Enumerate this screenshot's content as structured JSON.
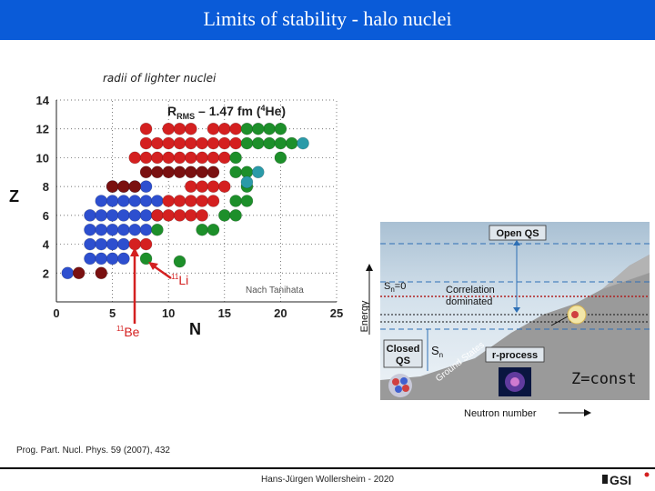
{
  "header": {
    "title": "Limits of stability - halo nuclei"
  },
  "subtitle": "radii of lighter nuclei",
  "chart_data": {
    "type": "scatter",
    "title": "",
    "annotation": {
      "text": "R",
      "sub": "RMS",
      "rest": " – 1.47 fm (",
      "sup": "4",
      "end": "He)"
    },
    "xlabel": "N",
    "ylabel": "Z",
    "xlim": [
      0,
      25
    ],
    "ylim": [
      0,
      14
    ],
    "xticks": [
      "0",
      "5",
      "10",
      "15",
      "20",
      "25"
    ],
    "yticks": [
      "2",
      "4",
      "6",
      "8",
      "10",
      "12",
      "14"
    ],
    "source_note": "Nach Tanihata",
    "labels": {
      "li": {
        "sup": "11",
        "text": "Li",
        "x": 11.5,
        "y": 3
      },
      "be": {
        "sup": "11",
        "text": "Be",
        "x": 7,
        "y": 4
      }
    },
    "series": [
      {
        "color": "#2d4fcf",
        "points": [
          [
            3,
            6
          ],
          [
            4,
            6
          ],
          [
            5,
            6
          ],
          [
            6,
            6
          ],
          [
            7,
            6
          ],
          [
            8,
            6
          ],
          [
            9,
            6
          ],
          [
            3,
            5
          ],
          [
            4,
            5
          ],
          [
            5,
            5
          ],
          [
            6,
            5
          ],
          [
            7,
            5
          ],
          [
            8,
            5
          ],
          [
            3,
            4
          ],
          [
            4,
            4
          ],
          [
            5,
            4
          ],
          [
            6,
            4
          ],
          [
            3,
            3
          ],
          [
            4,
            3
          ],
          [
            5,
            3
          ],
          [
            6,
            3
          ],
          [
            4,
            7
          ],
          [
            5,
            7
          ],
          [
            6,
            7
          ],
          [
            7,
            7
          ],
          [
            8,
            7
          ],
          [
            9,
            7
          ],
          [
            5,
            8
          ],
          [
            6,
            8
          ],
          [
            7,
            8
          ],
          [
            8,
            8
          ],
          [
            1,
            2
          ]
        ]
      },
      {
        "color": "#7a1010",
        "points": [
          [
            2,
            2
          ],
          [
            4,
            2
          ],
          [
            5,
            8
          ],
          [
            6,
            8
          ],
          [
            7,
            8
          ],
          [
            8,
            9
          ],
          [
            9,
            9
          ],
          [
            10,
            9
          ],
          [
            11,
            9
          ],
          [
            12,
            9
          ],
          [
            13,
            9
          ],
          [
            14,
            9
          ]
        ]
      },
      {
        "color": "#d42020",
        "points": [
          [
            7,
            4
          ],
          [
            8,
            4
          ],
          [
            9,
            6
          ],
          [
            10,
            6
          ],
          [
            11,
            6
          ],
          [
            12,
            6
          ],
          [
            13,
            6
          ],
          [
            10,
            7
          ],
          [
            11,
            7
          ],
          [
            12,
            7
          ],
          [
            13,
            7
          ],
          [
            14,
            7
          ],
          [
            7,
            10
          ],
          [
            8,
            10
          ],
          [
            9,
            10
          ],
          [
            10,
            10
          ],
          [
            11,
            10
          ],
          [
            12,
            10
          ],
          [
            13,
            10
          ],
          [
            14,
            10
          ],
          [
            15,
            10
          ],
          [
            8,
            11
          ],
          [
            9,
            11
          ],
          [
            10,
            11
          ],
          [
            11,
            11
          ],
          [
            12,
            11
          ],
          [
            13,
            11
          ],
          [
            14,
            11
          ],
          [
            15,
            11
          ],
          [
            16,
            11
          ],
          [
            8,
            12
          ],
          [
            10,
            12
          ],
          [
            11,
            12
          ],
          [
            12,
            12
          ],
          [
            14,
            12
          ],
          [
            15,
            12
          ],
          [
            16,
            12
          ],
          [
            12,
            8
          ],
          [
            13,
            8
          ],
          [
            14,
            8
          ],
          [
            15,
            8
          ]
        ]
      },
      {
        "color": "#1d8f2a",
        "points": [
          [
            8,
            3
          ],
          [
            9,
            5
          ],
          [
            15,
            6
          ],
          [
            16,
            6
          ],
          [
            13,
            5
          ],
          [
            14,
            5
          ],
          [
            16,
            7
          ],
          [
            17,
            7
          ],
          [
            17,
            8
          ],
          [
            16,
            9
          ],
          [
            17,
            9
          ],
          [
            16,
            10
          ],
          [
            17,
            11
          ],
          [
            18,
            11
          ],
          [
            19,
            11
          ],
          [
            20,
            11
          ],
          [
            19,
            12
          ],
          [
            20,
            12
          ],
          [
            17,
            12
          ],
          [
            18,
            12
          ],
          [
            20,
            10
          ],
          [
            21,
            11
          ],
          [
            11,
            2.8
          ]
        ]
      },
      {
        "color": "#2a9aa8",
        "points": [
          [
            18,
            9
          ],
          [
            17,
            8.3
          ],
          [
            22,
            11
          ]
        ]
      }
    ]
  },
  "diagram": {
    "open_qs": "Open QS",
    "sn_zero": "S",
    "sn_zero_sub": "n",
    "sn_zero_rest": "=0",
    "correlation": "Correlation",
    "dominated": "dominated",
    "energy_label": "Energy",
    "closed_qs_line1": "Closed",
    "closed_qs_line2": "QS",
    "sn": "S",
    "sn_sub": "n",
    "ground_states": "Ground States",
    "r_process": "r-process",
    "z_const": "Z=const",
    "neutron_number": "Neutron number"
  },
  "reference": "Prog. Part. Nucl. Phys. 59 (2007), 432",
  "footer": {
    "author": "Hans-Jürgen Wollersheim - 2020"
  },
  "logo": {
    "text": "GSI"
  }
}
